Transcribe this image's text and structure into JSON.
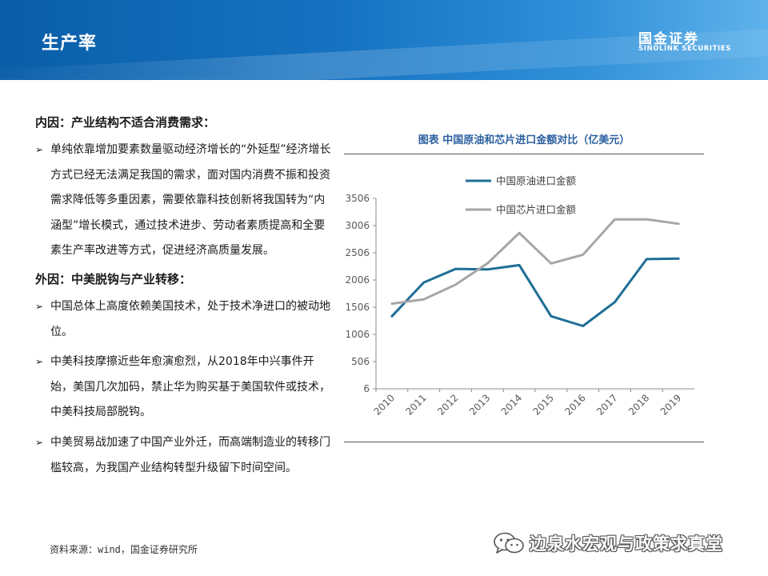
{
  "header": {
    "title": "生产率",
    "logo_mark": "国金证券",
    "logo_name": "SINOLINK SECURITIES"
  },
  "content": {
    "internal_heading": "内因：产业结构不适合消费需求：",
    "internal_bullets": [
      "单纯依靠增加要素数量驱动经济增长的“外延型”经济增长方式已经无法满足我国的需求，面对国内消费不振和投资需求降低等多重因素，需要依靠科技创新将我国转为“内涵型”增长模式，通过技术进步、劳动者素质提高和全要素生产率改进等方式，促进经济高质量发展。"
    ],
    "external_heading": "外因：中美脱钩与产业转移：",
    "external_bullets": [
      "中国总体上高度依赖美国技术，处于技术净进口的被动地位。",
      "中美科技摩擦近些年愈演愈烈，从2018年中兴事件开始，美国几次加码，禁止华为购买基于美国软件或技术，中美科技局部脱钩。",
      "中美贸易战加速了中国产业外迁，而高端制造业的转移门槛较高，为我国产业结构转型升级留下时间空间。"
    ],
    "bullet_symbol": "➢"
  },
  "chart_data": {
    "type": "line",
    "title": "图表   中国原油和芯片进口金额对比（亿美元）",
    "categories": [
      "2010",
      "2011",
      "2012",
      "2013",
      "2014",
      "2015",
      "2016",
      "2017",
      "2018",
      "2019"
    ],
    "series": [
      {
        "name": "中国原油进口金额",
        "color": "#1f6e96",
        "values": [
          1340,
          1960,
          2210,
          2200,
          2280,
          1340,
          1160,
          1600,
          2390,
          2400
        ]
      },
      {
        "name": "中国芯片进口金额",
        "color": "#a6a6a6",
        "values": [
          1570,
          1650,
          1920,
          2310,
          2870,
          2310,
          2470,
          3120,
          3120,
          3040
        ]
      }
    ],
    "yticks": [
      "6",
      "506",
      "1006",
      "1506",
      "2006",
      "2506",
      "3006",
      "3506"
    ],
    "ylim": [
      6,
      3506
    ],
    "grid": false,
    "legend_position": "top-left"
  },
  "footer": {
    "source": "资料来源：wind，国金证券研究所",
    "watermark": "边泉水宏观与政策求真堂"
  }
}
